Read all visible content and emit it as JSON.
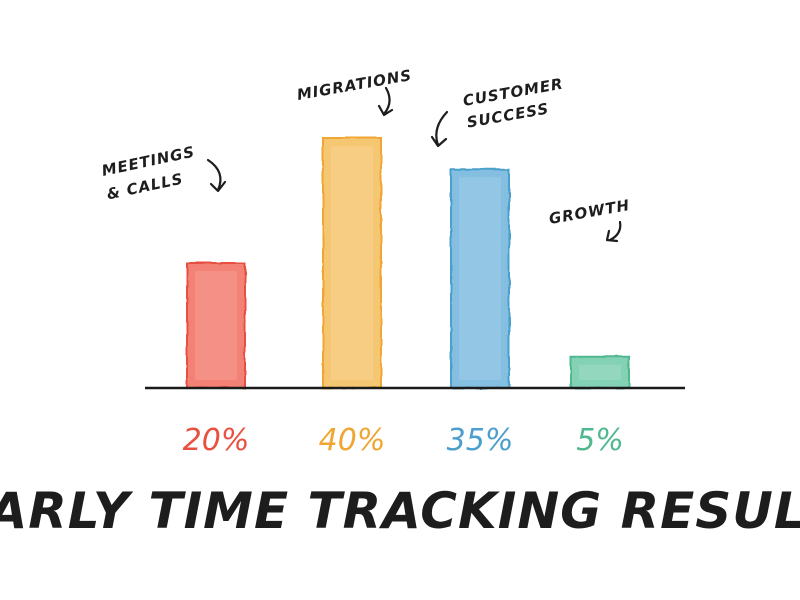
{
  "chart_data": {
    "type": "bar",
    "title": "Early Time Tracking Results",
    "categories": [
      "Meetings & Calls",
      "Migrations",
      "Customer Success",
      "Growth"
    ],
    "category_lines": [
      [
        "Meetings",
        "& Calls"
      ],
      [
        "Migrations"
      ],
      [
        "Customer",
        "Success"
      ],
      [
        "Growth"
      ]
    ],
    "values": [
      20,
      40,
      35,
      5
    ],
    "value_labels": [
      "20%",
      "40%",
      "35%",
      "5%"
    ],
    "colors": [
      "#f26b5e",
      "#f5bd5a",
      "#6fb4dc",
      "#6fcaa8"
    ],
    "edge_colors": [
      "#e8503f",
      "#efa632",
      "#4b9fcc",
      "#4fb88f"
    ],
    "xlabel": "",
    "ylabel": "",
    "grid": false,
    "legend": "none"
  }
}
